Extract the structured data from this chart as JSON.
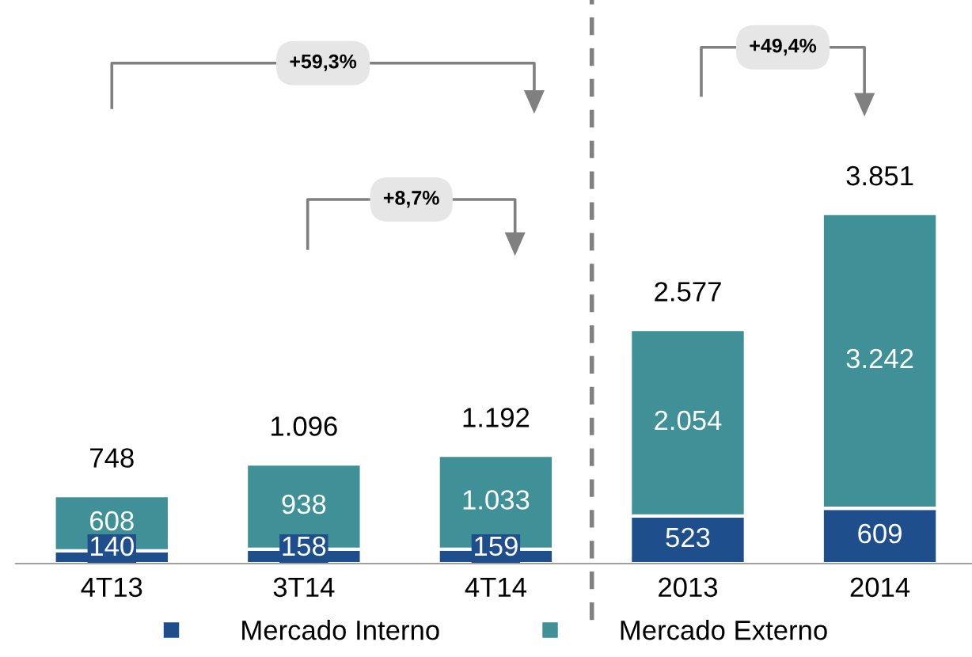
{
  "chart_data": {
    "type": "bar",
    "stacked": true,
    "categories": [
      "4T13",
      "3T14",
      "4T14",
      "2013",
      "2014"
    ],
    "series": [
      {
        "name": "Mercado Interno",
        "color": "#1f4e8c",
        "values": [
          140,
          158,
          159,
          523,
          609
        ],
        "value_labels": [
          "140",
          "158",
          "159",
          "523",
          "609"
        ]
      },
      {
        "name": "Mercado Externo",
        "color": "#3f9097",
        "values": [
          608,
          938,
          1033,
          2054,
          3242
        ],
        "value_labels": [
          "608",
          "938",
          "1.033",
          "2.054",
          "3.242"
        ]
      }
    ],
    "totals": [
      "748",
      "1.096",
      "1.192",
      "2.577",
      "3.851"
    ],
    "annotations": [
      "+59,3%",
      "+8,7%",
      "+49,4%"
    ],
    "legend": "bottom"
  }
}
